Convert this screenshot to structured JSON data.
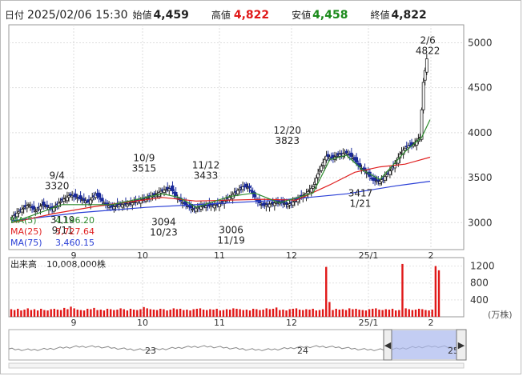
{
  "header": {
    "date_label": "日付",
    "date": "2025/02/06 15:30",
    "open_label": "始値",
    "open": "4,459",
    "high_label": "高値",
    "high": "4,822",
    "low_label": "安値",
    "low": "4,458",
    "close_label": "終値",
    "close": "4,822"
  },
  "colors": {
    "up": "#222222",
    "down": "#1a2a9a",
    "ma5": "#2e8b2e",
    "ma25": "#e02020",
    "ma75": "#2a3fd6",
    "volume": "#e01818",
    "high_red": "#e01818",
    "low_green": "#1a8a1a",
    "navigator_fill": "#aab8ee"
  },
  "chart_data": [
    {
      "type": "candlestick",
      "title": "",
      "ylim": [
        2700,
        5200
      ],
      "y_ticks": [
        "5000",
        "4500",
        "4000",
        "3500",
        "3000"
      ],
      "x_ticks": [
        "9",
        "10",
        "11",
        "12",
        "25/1",
        "2"
      ],
      "ma_legend": [
        {
          "name": "MA(5)",
          "value": "4,146.20"
        },
        {
          "name": "MA(25)",
          "value": "3,727.64"
        },
        {
          "name": "MA(75)",
          "value": "3,460.15"
        }
      ],
      "annotations": [
        {
          "date": "9/4",
          "value": "3320"
        },
        {
          "date": "9/11",
          "value": "3119"
        },
        {
          "date": "10/9",
          "value": "3515"
        },
        {
          "date": "10/23",
          "value": "3094"
        },
        {
          "date": "11/12",
          "value": "3433"
        },
        {
          "date": "11/19",
          "value": "3006"
        },
        {
          "date": "12/20",
          "value": "3823"
        },
        {
          "date": "1/21",
          "value": "3417"
        },
        {
          "date": "2/6",
          "value": "4822"
        }
      ],
      "close_trend": [
        [
          0,
          3060
        ],
        [
          6,
          3150
        ],
        [
          10,
          3200
        ],
        [
          14,
          3130
        ],
        [
          18,
          3200
        ],
        [
          24,
          3150
        ],
        [
          30,
          3250
        ],
        [
          35,
          3310
        ],
        [
          40,
          3270
        ],
        [
          46,
          3230
        ],
        [
          50,
          3320
        ],
        [
          56,
          3200
        ],
        [
          60,
          3170
        ],
        [
          64,
          3200
        ],
        [
          70,
          3210
        ],
        [
          75,
          3240
        ],
        [
          80,
          3270
        ],
        [
          85,
          3300
        ],
        [
          90,
          3360
        ],
        [
          95,
          3380
        ],
        [
          99,
          3270
        ],
        [
          103,
          3210
        ],
        [
          108,
          3150
        ],
        [
          113,
          3180
        ],
        [
          118,
          3190
        ],
        [
          123,
          3200
        ],
        [
          128,
          3250
        ],
        [
          133,
          3330
        ],
        [
          138,
          3400
        ],
        [
          142,
          3390
        ],
        [
          146,
          3250
        ],
        [
          150,
          3190
        ],
        [
          155,
          3210
        ],
        [
          160,
          3230
        ],
        [
          165,
          3200
        ],
        [
          170,
          3250
        ],
        [
          175,
          3310
        ],
        [
          180,
          3400
        ],
        [
          184,
          3590
        ],
        [
          188,
          3740
        ],
        [
          192,
          3720
        ],
        [
          196,
          3760
        ],
        [
          200,
          3780
        ],
        [
          204,
          3720
        ],
        [
          208,
          3620
        ],
        [
          212,
          3560
        ],
        [
          216,
          3470
        ],
        [
          220,
          3460
        ],
        [
          224,
          3530
        ],
        [
          228,
          3620
        ],
        [
          232,
          3760
        ],
        [
          236,
          3850
        ],
        [
          240,
          3870
        ],
        [
          244,
          3950
        ],
        [
          246,
          4560
        ],
        [
          248,
          4822
        ]
      ],
      "ma5_trend": [
        [
          0,
          3000
        ],
        [
          30,
          3200
        ],
        [
          60,
          3200
        ],
        [
          90,
          3320
        ],
        [
          100,
          3280
        ],
        [
          110,
          3170
        ],
        [
          130,
          3290
        ],
        [
          145,
          3330
        ],
        [
          160,
          3220
        ],
        [
          180,
          3330
        ],
        [
          190,
          3700
        ],
        [
          200,
          3750
        ],
        [
          210,
          3580
        ],
        [
          220,
          3480
        ],
        [
          235,
          3790
        ],
        [
          245,
          3950
        ],
        [
          250,
          4146
        ]
      ],
      "ma25_trend": [
        [
          0,
          3000
        ],
        [
          25,
          3100
        ],
        [
          50,
          3180
        ],
        [
          70,
          3230
        ],
        [
          90,
          3280
        ],
        [
          110,
          3240
        ],
        [
          130,
          3250
        ],
        [
          150,
          3260
        ],
        [
          170,
          3250
        ],
        [
          190,
          3420
        ],
        [
          205,
          3560
        ],
        [
          220,
          3620
        ],
        [
          235,
          3650
        ],
        [
          250,
          3728
        ]
      ],
      "ma75_trend": [
        [
          0,
          3020
        ],
        [
          40,
          3110
        ],
        [
          80,
          3170
        ],
        [
          120,
          3210
        ],
        [
          160,
          3250
        ],
        [
          200,
          3320
        ],
        [
          230,
          3410
        ],
        [
          250,
          3460
        ]
      ]
    },
    {
      "type": "bar",
      "title": "出来高",
      "subtitle": "10,008,000株",
      "ylim": [
        0,
        1400
      ],
      "y_ticks": [
        "1200",
        "800",
        "400"
      ],
      "unit": "(万株)",
      "x_ticks": [
        "9",
        "10",
        "11",
        "12",
        "25/1",
        "2"
      ],
      "volumes": [
        180,
        160,
        190,
        150,
        170,
        200,
        160,
        180,
        150,
        190,
        160,
        150,
        180,
        190,
        170,
        160,
        210,
        180,
        240,
        200,
        170,
        160,
        150,
        190,
        180,
        210,
        160,
        170,
        150,
        190,
        180,
        160,
        170,
        200,
        180,
        150,
        190,
        170,
        160,
        180,
        230,
        200,
        180,
        170,
        160,
        190,
        180,
        150,
        170,
        200,
        180,
        190,
        160,
        170,
        150,
        180,
        190,
        200,
        170,
        160,
        180,
        170,
        190,
        150,
        160,
        180,
        170,
        200,
        190,
        180,
        160,
        170,
        150,
        190,
        180,
        160,
        170,
        200,
        180,
        190,
        220,
        160,
        170,
        150,
        180,
        190,
        200,
        170,
        160,
        180,
        170,
        190,
        150,
        160,
        180,
        1180,
        350,
        160,
        190,
        170,
        180,
        160,
        200,
        180,
        190,
        170,
        160,
        150,
        180,
        190,
        200,
        170,
        160,
        180,
        170,
        190,
        150,
        160,
        1250,
        200,
        180,
        160,
        170,
        190,
        180,
        160,
        150,
        170,
        1200,
        1100
      ]
    }
  ],
  "navigator": {
    "labels": [
      "23",
      "24",
      "25"
    ],
    "left_handle": "◀",
    "right_handle": "▶"
  }
}
